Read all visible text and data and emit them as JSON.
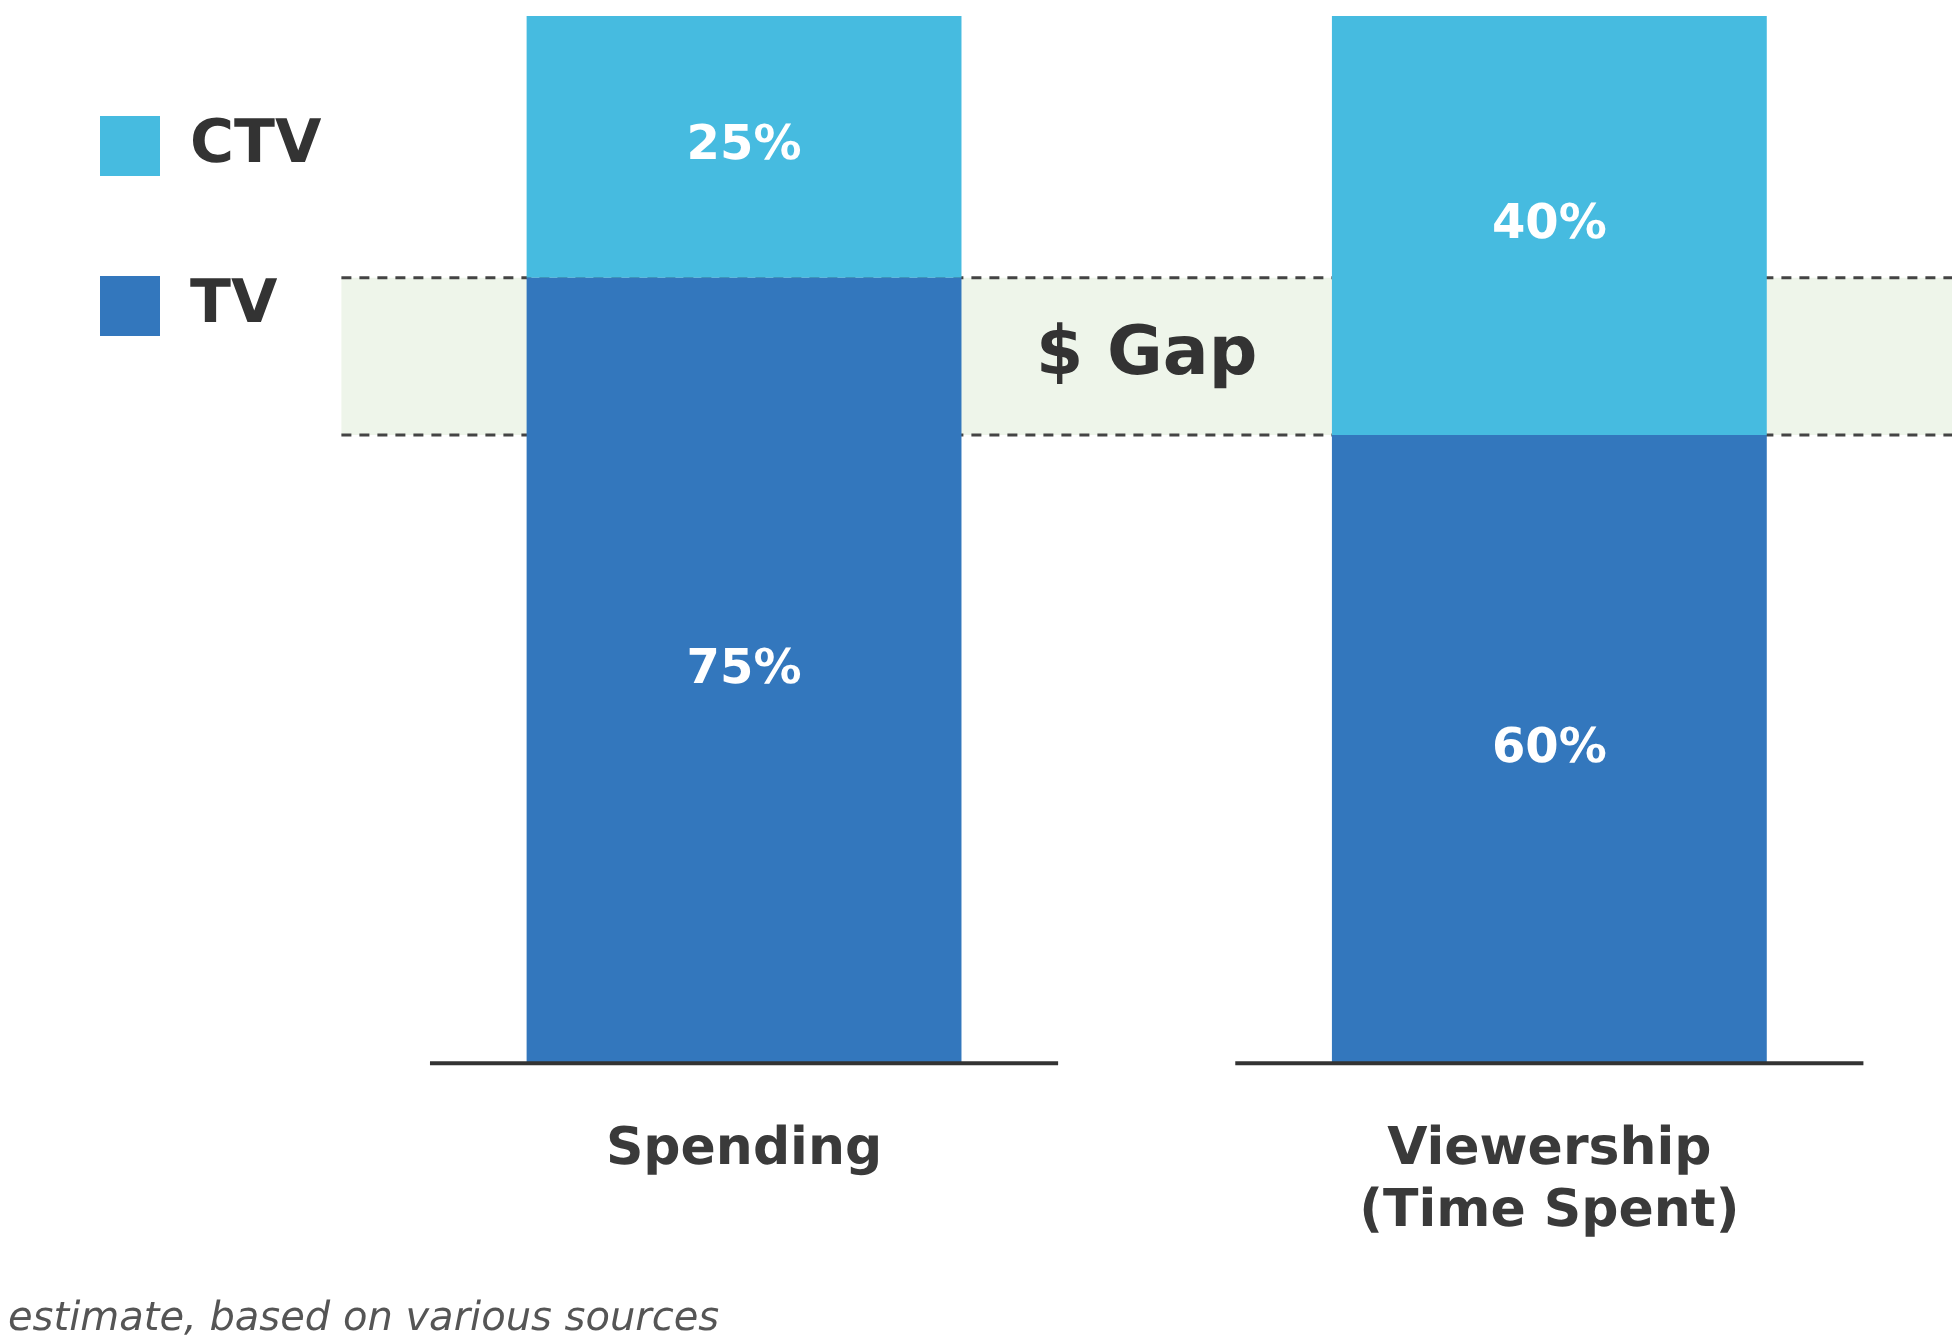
{
  "chart_data": {
    "type": "bar",
    "stacked": true,
    "categories": [
      "Spending",
      "Viewership (Time Spent)"
    ],
    "series": [
      {
        "name": "TV",
        "color": "#3377bd",
        "values": [
          75,
          60
        ],
        "value_labels": [
          "75%",
          "60%"
        ]
      },
      {
        "name": "CTV",
        "color": "#46bbe0",
        "values": [
          25,
          40
        ],
        "value_labels": [
          "25%",
          "40%"
        ]
      }
    ],
    "ylim": [
      0,
      100
    ],
    "tick_labels": "x",
    "grid": false,
    "legend": "top left",
    "bands": [
      {
        "axis": "y",
        "from": 60,
        "to": 75,
        "label": "$ Gap",
        "color": "#eef5ea"
      }
    ],
    "ref_lines": [
      {
        "axis": "y",
        "value": 75,
        "color": "#444444",
        "line_style": "dashed"
      },
      {
        "axis": "y",
        "value": 60,
        "color": "#444444",
        "line_style": "dashed"
      }
    ],
    "annotations": [
      "estimate, based on various sources"
    ]
  }
}
